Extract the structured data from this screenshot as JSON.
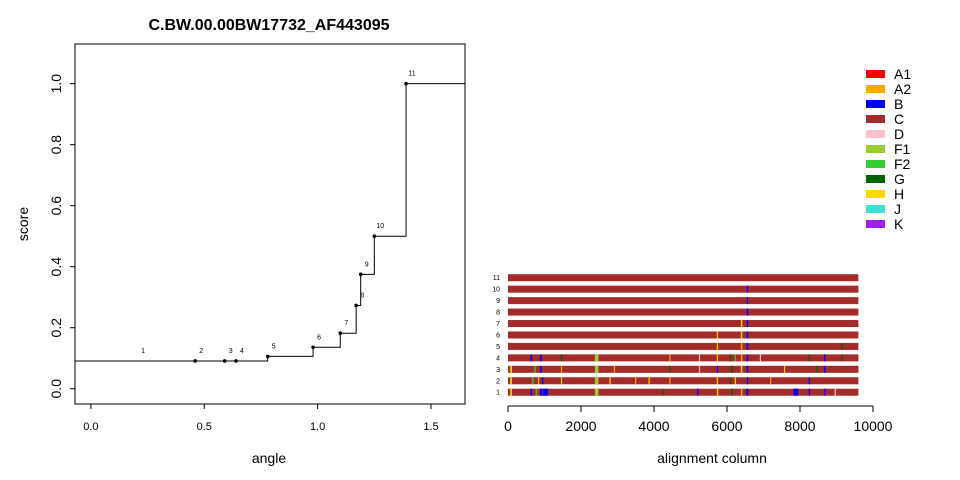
{
  "chart_data": [
    {
      "type": "line",
      "title": "C.BW.00.00BW17732_AF443095",
      "xlabel": "angle",
      "ylabel": "score",
      "xlim": [
        -0.07,
        1.65
      ],
      "ylim": [
        -0.05,
        1.13
      ],
      "xticks": [
        "0.0",
        "0.5",
        "1.0",
        "1.5"
      ],
      "xtick_values": [
        0,
        0.5,
        1.0,
        1.5
      ],
      "yticks": [
        "0.0",
        "0.2",
        "0.4",
        "0.6",
        "0.8",
        "1.0"
      ],
      "ytick_values": [
        0,
        0.2,
        0.4,
        0.6,
        0.8,
        1.0
      ],
      "step": true,
      "points": [
        {
          "label": "1",
          "x": 0.23,
          "y": 0.091
        },
        {
          "label": "2",
          "x": 0.46,
          "y": 0.091
        },
        {
          "label": "3",
          "x": 0.59,
          "y": 0.091
        },
        {
          "label": "4",
          "x": 0.64,
          "y": 0.091
        },
        {
          "label": "5",
          "x": 0.78,
          "y": 0.106
        },
        {
          "label": "6",
          "x": 0.98,
          "y": 0.136
        },
        {
          "label": "7",
          "x": 1.1,
          "y": 0.182
        },
        {
          "label": "8",
          "x": 1.17,
          "y": 0.273
        },
        {
          "label": "9",
          "x": 1.19,
          "y": 0.375
        },
        {
          "label": "10",
          "x": 1.25,
          "y": 0.5
        },
        {
          "label": "11",
          "x": 1.39,
          "y": 1.0
        }
      ],
      "step_start_x": -0.07,
      "step_start_y": 0.091,
      "step_end_x": 1.65
    },
    {
      "type": "heatmap",
      "xlabel": "alignment column",
      "xlim": [
        0,
        10000
      ],
      "xticks": [
        "0",
        "2000",
        "4000",
        "6000",
        "8000",
        "10000"
      ],
      "xtick_values": [
        0,
        2000,
        4000,
        6000,
        8000,
        10000
      ],
      "row_labels": [
        "1",
        "2",
        "3",
        "4",
        "5",
        "6",
        "7",
        "8",
        "9",
        "10",
        "11"
      ],
      "alignment_length": 9600,
      "base_subtype": "C",
      "segments": [
        [
          {
            "start": 60,
            "end": 110,
            "subtype": "H"
          },
          {
            "start": 620,
            "end": 660,
            "subtype": "B"
          },
          {
            "start": 760,
            "end": 800,
            "subtype": "F2"
          },
          {
            "start": 880,
            "end": 940,
            "subtype": "B"
          },
          {
            "start": 960,
            "end": 1100,
            "subtype": "B"
          },
          {
            "start": 2380,
            "end": 2480,
            "subtype": "F1"
          },
          {
            "start": 4220,
            "end": 4250,
            "subtype": "G"
          },
          {
            "start": 5180,
            "end": 5215,
            "subtype": "B"
          },
          {
            "start": 5720,
            "end": 5760,
            "subtype": "H"
          },
          {
            "start": 6120,
            "end": 6160,
            "subtype": "G"
          },
          {
            "start": 6380,
            "end": 6420,
            "subtype": "A2"
          },
          {
            "start": 6530,
            "end": 6580,
            "subtype": "B"
          },
          {
            "start": 7820,
            "end": 7950,
            "subtype": "B"
          },
          {
            "start": 8240,
            "end": 8275,
            "subtype": "B"
          },
          {
            "start": 8660,
            "end": 8700,
            "subtype": "B"
          },
          {
            "start": 8950,
            "end": 8985,
            "subtype": "D"
          }
        ],
        [
          {
            "start": 60,
            "end": 110,
            "subtype": "H"
          },
          {
            "start": 660,
            "end": 700,
            "subtype": "F2"
          },
          {
            "start": 820,
            "end": 850,
            "subtype": "H"
          },
          {
            "start": 930,
            "end": 970,
            "subtype": "B"
          },
          {
            "start": 1450,
            "end": 1480,
            "subtype": "H"
          },
          {
            "start": 2380,
            "end": 2480,
            "subtype": "F1"
          },
          {
            "start": 2780,
            "end": 2810,
            "subtype": "H"
          },
          {
            "start": 3480,
            "end": 3510,
            "subtype": "A2"
          },
          {
            "start": 3850,
            "end": 3880,
            "subtype": "H"
          },
          {
            "start": 4420,
            "end": 4450,
            "subtype": "A2"
          },
          {
            "start": 5720,
            "end": 5750,
            "subtype": "H"
          },
          {
            "start": 6080,
            "end": 6110,
            "subtype": "G"
          },
          {
            "start": 6210,
            "end": 6240,
            "subtype": "H"
          },
          {
            "start": 6540,
            "end": 6580,
            "subtype": "B"
          },
          {
            "start": 7180,
            "end": 7210,
            "subtype": "A2"
          },
          {
            "start": 8240,
            "end": 8270,
            "subtype": "B"
          }
        ],
        [
          {
            "start": 60,
            "end": 110,
            "subtype": "H"
          },
          {
            "start": 720,
            "end": 760,
            "subtype": "F2"
          },
          {
            "start": 880,
            "end": 920,
            "subtype": "B"
          },
          {
            "start": 1450,
            "end": 1480,
            "subtype": "A2"
          },
          {
            "start": 2380,
            "end": 2480,
            "subtype": "F1"
          },
          {
            "start": 2900,
            "end": 2930,
            "subtype": "A2"
          },
          {
            "start": 4420,
            "end": 4450,
            "subtype": "G"
          },
          {
            "start": 5230,
            "end": 5260,
            "subtype": "D"
          },
          {
            "start": 5720,
            "end": 5750,
            "subtype": "B"
          },
          {
            "start": 6120,
            "end": 6160,
            "subtype": "G"
          },
          {
            "start": 6380,
            "end": 6420,
            "subtype": "H"
          },
          {
            "start": 6540,
            "end": 6580,
            "subtype": "B"
          },
          {
            "start": 7560,
            "end": 7590,
            "subtype": "H"
          },
          {
            "start": 8450,
            "end": 8480,
            "subtype": "G"
          },
          {
            "start": 8660,
            "end": 8700,
            "subtype": "B"
          }
        ],
        [
          {
            "start": 620,
            "end": 660,
            "subtype": "B"
          },
          {
            "start": 880,
            "end": 920,
            "subtype": "B"
          },
          {
            "start": 1450,
            "end": 1480,
            "subtype": "G"
          },
          {
            "start": 2380,
            "end": 2480,
            "subtype": "F1"
          },
          {
            "start": 4420,
            "end": 4450,
            "subtype": "A2"
          },
          {
            "start": 5230,
            "end": 5260,
            "subtype": "D"
          },
          {
            "start": 5720,
            "end": 5750,
            "subtype": "H"
          },
          {
            "start": 6080,
            "end": 6110,
            "subtype": "G"
          },
          {
            "start": 6210,
            "end": 6240,
            "subtype": "F2"
          },
          {
            "start": 6380,
            "end": 6420,
            "subtype": "A2"
          },
          {
            "start": 6540,
            "end": 6580,
            "subtype": "B"
          },
          {
            "start": 6900,
            "end": 6930,
            "subtype": "D"
          },
          {
            "start": 8240,
            "end": 8270,
            "subtype": "G"
          },
          {
            "start": 8660,
            "end": 8700,
            "subtype": "B"
          },
          {
            "start": 9140,
            "end": 9170,
            "subtype": "G"
          }
        ],
        [
          {
            "start": 5720,
            "end": 5750,
            "subtype": "H"
          },
          {
            "start": 6380,
            "end": 6420,
            "subtype": "A2"
          },
          {
            "start": 6540,
            "end": 6580,
            "subtype": "B"
          },
          {
            "start": 9140,
            "end": 9170,
            "subtype": "G"
          }
        ],
        [
          {
            "start": 5720,
            "end": 5750,
            "subtype": "H"
          },
          {
            "start": 6380,
            "end": 6420,
            "subtype": "H"
          },
          {
            "start": 6540,
            "end": 6580,
            "subtype": "B"
          }
        ],
        [
          {
            "start": 6380,
            "end": 6420,
            "subtype": "H"
          },
          {
            "start": 6540,
            "end": 6580,
            "subtype": "B"
          }
        ],
        [
          {
            "start": 6540,
            "end": 6580,
            "subtype": "B"
          }
        ],
        [
          {
            "start": 6540,
            "end": 6580,
            "subtype": "B"
          }
        ],
        [
          {
            "start": 6540,
            "end": 6580,
            "subtype": "B"
          }
        ],
        []
      ]
    }
  ],
  "legend": {
    "placement": "top-right",
    "items": [
      {
        "label": "A1",
        "color": "#ff0000"
      },
      {
        "label": "A2",
        "color": "#ffa500"
      },
      {
        "label": "B",
        "color": "#0000ff"
      },
      {
        "label": "C",
        "color": "#a52a2a"
      },
      {
        "label": "D",
        "color": "#ffc0cb"
      },
      {
        "label": "F1",
        "color": "#9acd32"
      },
      {
        "label": "F2",
        "color": "#32cd32"
      },
      {
        "label": "G",
        "color": "#006400"
      },
      {
        "label": "H",
        "color": "#ffd700"
      },
      {
        "label": "J",
        "color": "#40e0d0"
      },
      {
        "label": "K",
        "color": "#a020f0"
      }
    ]
  }
}
